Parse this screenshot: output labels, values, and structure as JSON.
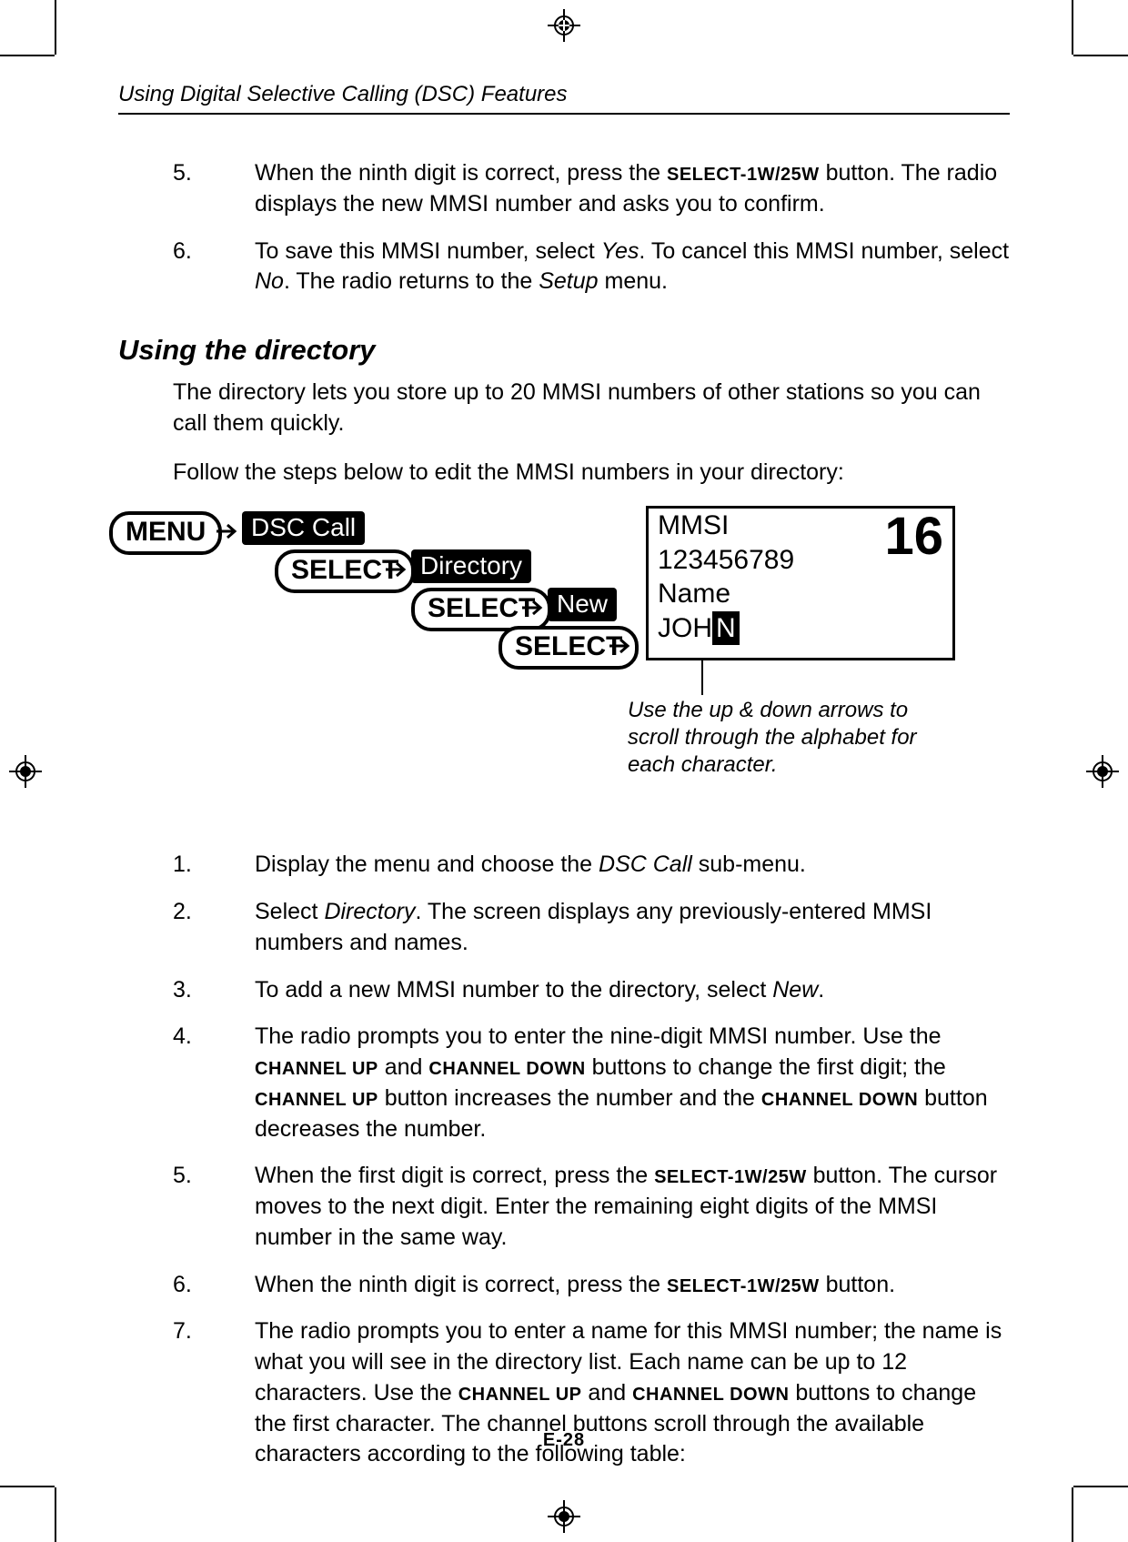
{
  "running_head": "Using Digital Selective Calling (DSC) Features",
  "top_list": [
    {
      "n": "5.",
      "pre": "When the ninth digit is correct, press the ",
      "btn": "SELECT-1W/25W",
      "post": " button. The radio displays the new MMSI number and asks you to confirm."
    },
    {
      "n": "6.",
      "full": "To save this MMSI number, select <span class='ital'>Yes</span>. To cancel this MMSI number, select <span class='ital'>No</span>. The radio returns to the <span class='ital'>Setup</span> menu."
    }
  ],
  "h2": "Using the directory",
  "intro1": "The directory lets you store up to 20 MMSI numbers of other stations so you can call them quickly.",
  "intro2": "Follow the steps below to edit the MMSI numbers in your directory:",
  "diagram": {
    "menu": "MENU",
    "select": "SELECT",
    "dsc": "DSC Call",
    "dir": "Directory",
    "new": "New",
    "lcd_line1": "MMSI",
    "lcd_line2": "123456789",
    "lcd_line3": "Name",
    "lcd_line4_pre": "JOH",
    "lcd_line4_cur": "N",
    "lcd_big": "16",
    "caption": "Use the up & down arrows to scroll through the alphabet for each character."
  },
  "bottom_list": {
    "i1": {
      "n": "1.",
      "t": "Display the menu and choose the <span class='ital'>DSC Call</span> sub-menu."
    },
    "i2": {
      "n": "2.",
      "t": "Select <span class='ital'>Directory</span>. The screen displays any previously-entered MMSI numbers and names."
    },
    "i3": {
      "n": "3.",
      "t": "To add a new MMSI number to the directory, select <span class='ital'>New</span>."
    },
    "i4": {
      "n": "4.",
      "t": "The radio prompts you to enter the nine-digit MMSI number. Use the <span class='smallcaps'>CHANNEL UP</span> and <span class='smallcaps'>CHANNEL DOWN</span> buttons to change the first digit; the <span class='smallcaps'>CHANNEL UP</span> button increases the number and the <span class='smallcaps'>CHANNEL DOWN</span> button decreases the number."
    },
    "i5": {
      "n": "5.",
      "t": "When the first digit is correct, press the <span class='smallcaps'>SELECT-1W/25W</span> button. The cursor moves to the next digit. Enter the remaining eight digits of the MMSI number in the same way."
    },
    "i6": {
      "n": "6.",
      "t": "When the ninth digit is correct, press the <span class='smallcaps'>SELECT-1W/25W</span> button."
    },
    "i7": {
      "n": "7.",
      "t": "The radio prompts you to enter a name for this MMSI number; the name is what you will see in the directory list. Each name can be up to 12 characters. Use the <span class='smallcaps'>CHANNEL UP</span> and <span class='smallcaps'>CHANNEL DOWN</span> buttons to change the first character. The channel buttons scroll through the available characters according to the following table:"
    }
  },
  "page_num": "E-28",
  "colors": {
    "fg": "#000000",
    "bg": "#ffffff"
  }
}
